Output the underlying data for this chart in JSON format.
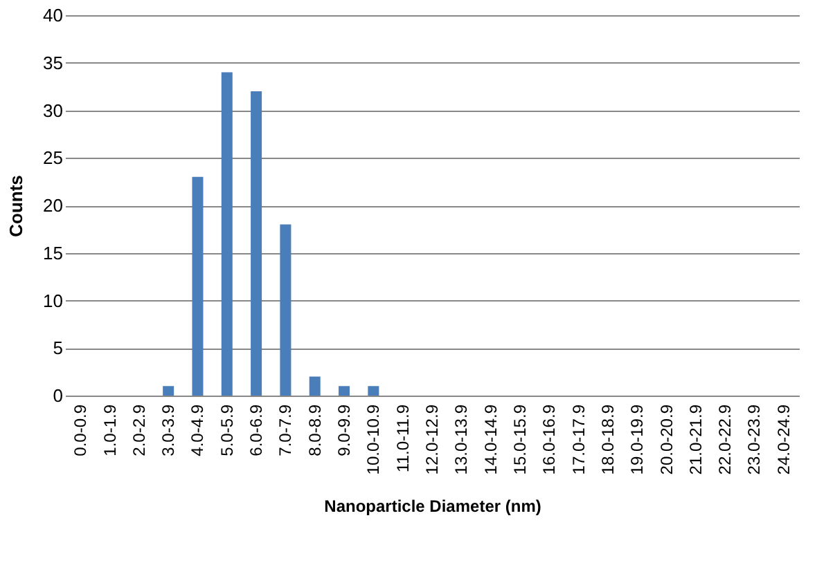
{
  "chart_data": {
    "type": "bar",
    "xlabel": "Nanoparticle Diameter (nm)",
    "ylabel": "Counts",
    "categories": [
      "0.0-0.9",
      "1.0-1.9",
      "2.0-2.9",
      "3.0-3.9",
      "4.0-4.9",
      "5.0-5.9",
      "6.0-6.9",
      "7.0-7.9",
      "8.0-8.9",
      "9.0-9.9",
      "10.0-10.9",
      "11.0-11.9",
      "12.0-12.9",
      "13.0-13.9",
      "14.0-14.9",
      "15.0-15.9",
      "16.0-16.9",
      "17.0-17.9",
      "18.0-18.9",
      "19.0-19.9",
      "20.0-20.9",
      "21.0-21.9",
      "22.0-22.9",
      "23.0-23.9",
      "24.0-24.9"
    ],
    "values": [
      0,
      0,
      0,
      1,
      23,
      34,
      32,
      18,
      2,
      1,
      1,
      0,
      0,
      0,
      0,
      0,
      0,
      0,
      0,
      0,
      0,
      0,
      0,
      0,
      0
    ],
    "color": "#4a7ebb",
    "ylim": [
      0,
      40
    ],
    "yticks": [
      0,
      5,
      10,
      15,
      20,
      25,
      30,
      35,
      40
    ],
    "grid": "y"
  }
}
